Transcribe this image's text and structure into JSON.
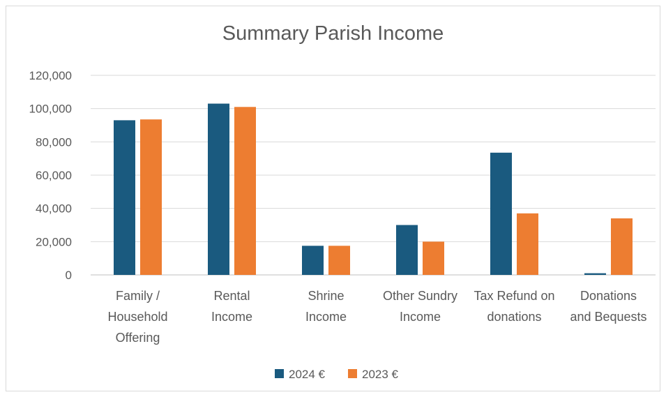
{
  "chart_data": {
    "type": "bar",
    "title": "Summary Parish Income",
    "xlabel": "",
    "ylabel": "",
    "categories": [
      [
        "Family /",
        "Household",
        "Offering"
      ],
      [
        "Rental",
        "Income"
      ],
      [
        "Shrine",
        "Income"
      ],
      [
        "Other Sundry",
        "Income"
      ],
      [
        "Tax Refund on",
        "donations"
      ],
      [
        "Donations",
        "and Bequests"
      ]
    ],
    "series": [
      {
        "name": "2024  €",
        "color": "#1a5a7f",
        "values": [
          93000,
          103000,
          17500,
          30000,
          73500,
          1000
        ]
      },
      {
        "name": "2023  €",
        "color": "#ed7d31",
        "values": [
          93500,
          101000,
          17500,
          20000,
          37000,
          34000
        ]
      }
    ],
    "ylim": [
      0,
      120000
    ],
    "yticks": [
      "0",
      "20,000",
      "40,000",
      "60,000",
      "80,000",
      "100,000",
      "120,000"
    ],
    "grid": true,
    "legend": "bottom"
  }
}
